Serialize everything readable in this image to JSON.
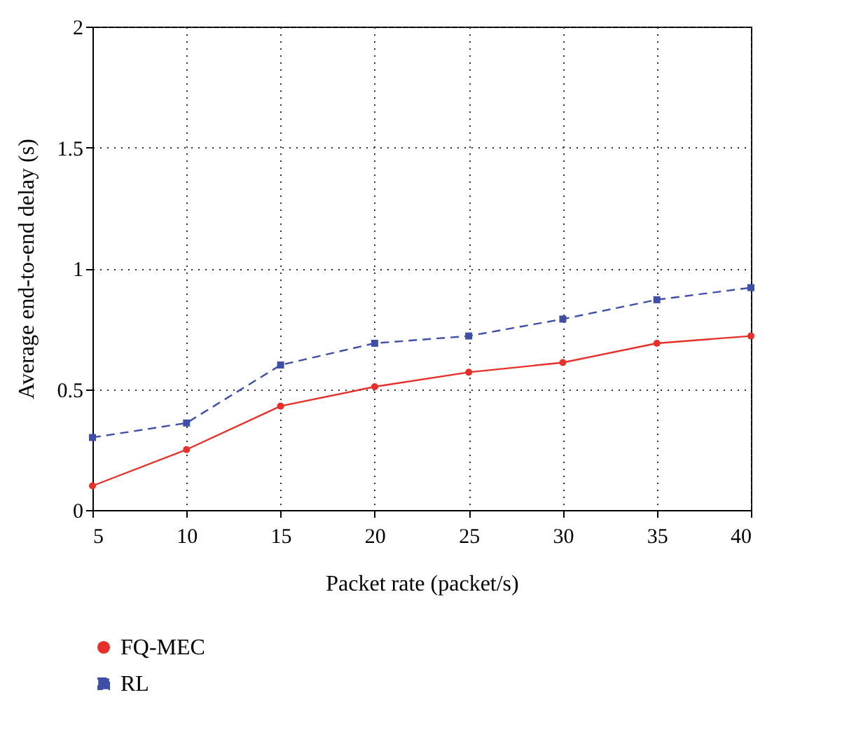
{
  "chart_data": {
    "type": "line",
    "xlabel": "Packet rate (packet/s)",
    "ylabel": "Average end-to-end delay (s)",
    "x": [
      5,
      10,
      15,
      20,
      25,
      30,
      35,
      40
    ],
    "series": [
      {
        "name": "FQ-MEC",
        "color": "#e8302a",
        "marker": "circle",
        "line_style": "solid",
        "values": [
          0.1,
          0.25,
          0.43,
          0.51,
          0.57,
          0.61,
          0.69,
          0.72
        ]
      },
      {
        "name": "RL",
        "color": "#3f4fa8",
        "marker": "square",
        "line_style": "dashed",
        "values": [
          0.3,
          0.36,
          0.6,
          0.69,
          0.72,
          0.79,
          0.87,
          0.92
        ]
      }
    ],
    "xlim": [
      5,
      40
    ],
    "xticks": [
      5,
      10,
      15,
      20,
      25,
      30,
      35,
      40
    ],
    "ylim": [
      0,
      2
    ],
    "yticks": [
      0,
      0.5,
      1,
      1.5,
      2
    ],
    "grid": true,
    "legend": "bottom left"
  }
}
